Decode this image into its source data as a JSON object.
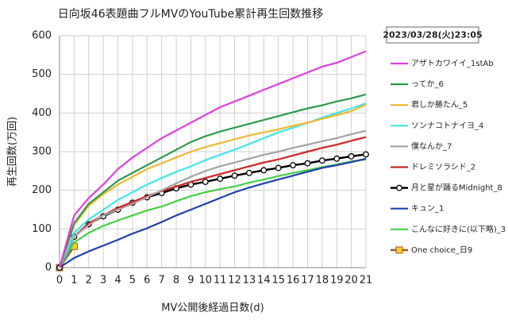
{
  "chart_data": {
    "type": "line",
    "title": "日向坂46表題曲フルMVのYouTube累計再生回数推移",
    "annotation": "2023/03/28(火)23:05",
    "x_label": "MV公開後経過日数(d)",
    "y_label": "再生回数(万回)",
    "x": [
      0,
      1,
      2,
      3,
      4,
      5,
      6,
      7,
      8,
      9,
      10,
      11,
      12,
      13,
      14,
      15,
      16,
      17,
      18,
      19,
      20,
      21
    ],
    "xlim": [
      0,
      21
    ],
    "xticks": [
      0,
      1,
      2,
      3,
      4,
      5,
      6,
      7,
      8,
      9,
      10,
      11,
      12,
      13,
      14,
      15,
      16,
      17,
      18,
      19,
      20,
      21
    ],
    "ylim": [
      0,
      600
    ],
    "yticks": [
      0,
      100,
      200,
      300,
      400,
      500,
      600
    ],
    "grid": true,
    "legend": "right",
    "series": [
      {
        "name": "アザトカワイイ_1stAb",
        "color": "#e03ee0",
        "values": [
          0,
          135,
          180,
          215,
          255,
          285,
          310,
          335,
          355,
          375,
          395,
          415,
          430,
          445,
          460,
          475,
          490,
          505,
          520,
          530,
          545,
          560
        ]
      },
      {
        "name": "ってか_6",
        "color": "#2e9a4e",
        "values": [
          0,
          115,
          165,
          195,
          225,
          245,
          265,
          285,
          305,
          325,
          340,
          352,
          362,
          372,
          382,
          392,
          402,
          412,
          420,
          430,
          438,
          448
        ]
      },
      {
        "name": "君しか勝たん_5",
        "color": "#f2b632",
        "values": [
          0,
          110,
          160,
          190,
          215,
          235,
          255,
          270,
          285,
          300,
          312,
          322,
          332,
          342,
          350,
          358,
          367,
          375,
          385,
          395,
          405,
          422
        ]
      },
      {
        "name": "ソンナコトナイヨ_4",
        "color": "#3ee6e6",
        "values": [
          0,
          90,
          125,
          150,
          175,
          195,
          215,
          232,
          248,
          262,
          278,
          292,
          305,
          320,
          335,
          350,
          362,
          375,
          388,
          400,
          412,
          425
        ]
      },
      {
        "name": "僕なんか_7",
        "color": "#a4a4a4",
        "values": [
          0,
          80,
          110,
          135,
          150,
          165,
          182,
          200,
          218,
          235,
          250,
          262,
          272,
          282,
          292,
          300,
          310,
          318,
          327,
          335,
          345,
          354
        ]
      },
      {
        "name": "ドレミソラシド_2",
        "color": "#d02424",
        "values": [
          0,
          80,
          115,
          135,
          155,
          170,
          185,
          198,
          210,
          222,
          232,
          242,
          252,
          262,
          272,
          280,
          290,
          300,
          310,
          318,
          328,
          338
        ]
      },
      {
        "name": "月と星が踊るMidnight_8",
        "color": "#000000",
        "marker": "circle",
        "marker_fill": "#ffffff",
        "values": [
          0,
          80,
          112,
          133,
          150,
          168,
          182,
          193,
          205,
          215,
          222,
          230,
          238,
          245,
          252,
          258,
          265,
          270,
          277,
          282,
          288,
          293
        ]
      },
      {
        "name": "キュン_1",
        "color": "#2040b0",
        "values": [
          0,
          25,
          42,
          57,
          72,
          88,
          102,
          118,
          135,
          150,
          165,
          180,
          195,
          207,
          218,
          228,
          238,
          248,
          258,
          265,
          273,
          282
        ]
      },
      {
        "name": "こんなに好きに(以下略)_3",
        "color": "#44d044",
        "values": [
          0,
          65,
          90,
          108,
          122,
          135,
          148,
          158,
          172,
          185,
          195,
          203,
          210,
          220,
          228,
          237,
          245,
          252,
          260,
          267,
          275,
          280
        ]
      },
      {
        "name": "One choice_日9",
        "color": "#a0522d",
        "marker": "square",
        "marker_fill": "#f8d020",
        "values": [
          0,
          55,
          null,
          null,
          null,
          null,
          null,
          null,
          null,
          null,
          null,
          null,
          null,
          null,
          null,
          null,
          null,
          null,
          null,
          null,
          null,
          null
        ]
      }
    ]
  }
}
